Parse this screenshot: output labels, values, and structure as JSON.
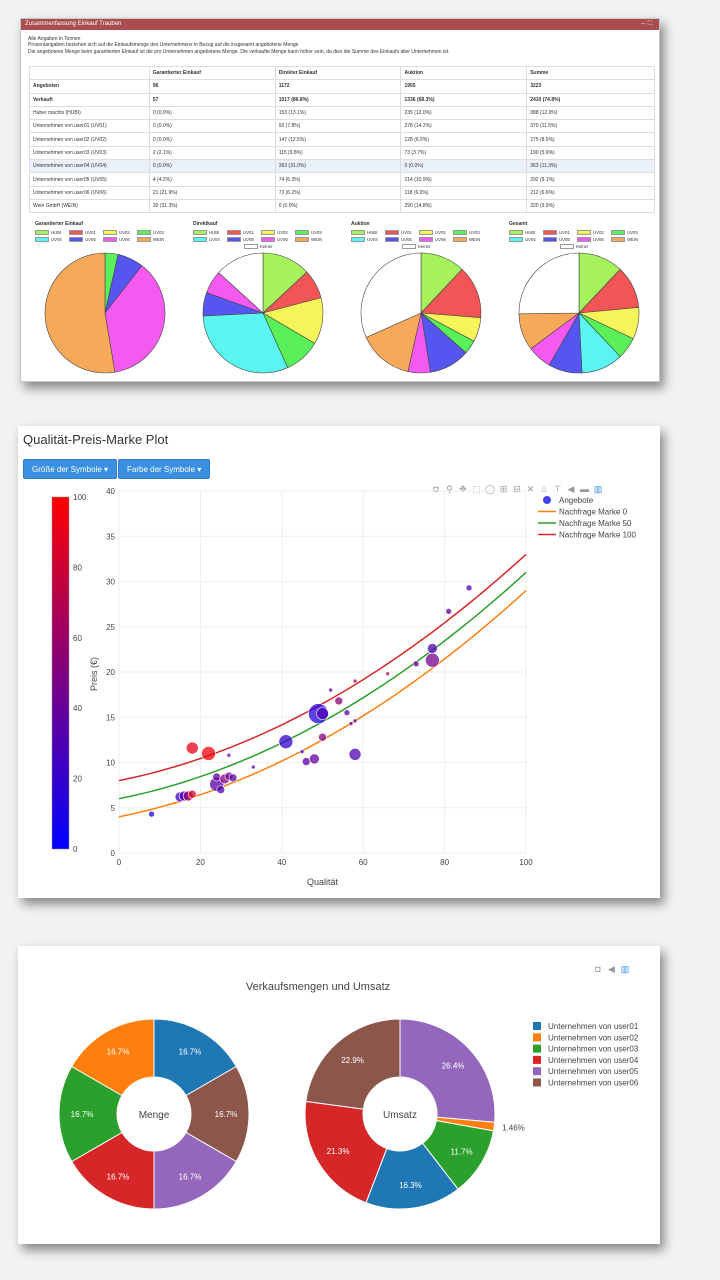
{
  "panel1": {
    "header_title": "Zusammenfassung Einkauf Trauben",
    "notes": [
      "Alle Angaben in Tonnen",
      "Prozentangaben beziehen sich auf die Einkaufsmenge des Unternehmens in Bezug auf die insgesamt angebotene Menge",
      "Die angebotene Menge beim garantierten Einkauf ist die pro Unternehmen angebotene Menge. Die verkaufte Menge kann höher sein, da dies die Summe des Einkaufs aller Unternehmen ist."
    ],
    "table": {
      "headers": [
        "",
        "Garantierter Einkauf",
        "Direkter Einkauf",
        "Auktion",
        "Summe"
      ],
      "rows": [
        [
          "Angeboten",
          "96",
          "1172",
          "1955",
          "3223"
        ],
        [
          "Verkauft",
          "57",
          "1017 (86.8%)",
          "1336 (68.3%)",
          "2410 (74.8%)"
        ],
        [
          "Huber machts (HUBI)",
          "0 (0.0%)",
          "153 (13.1%)",
          "235 (12.0%)",
          "388 (12.0%)"
        ],
        [
          "Unternehmen von user01 (UV01)",
          "0 (0.0%)",
          "92 (7.8%)",
          "278 (14.2%)",
          "370 (11.5%)"
        ],
        [
          "Unternehmen von user02 (UV02)",
          "0 (0.0%)",
          "147 (12.5%)",
          "128 (6.5%)",
          "275 (8.5%)"
        ],
        [
          "Unternehmen von user03 (UV03)",
          "2 (2.1%)",
          "115 (9.8%)",
          "73 (3.7%)",
          "190 (5.9%)"
        ],
        [
          "Unternehmen von user04 (UV04)",
          "0 (0.0%)",
          "363 (31.0%)",
          "0 (0.0%)",
          "363 (11.3%)"
        ],
        [
          "Unternehmen von user05 (UV05)",
          "4 (4.2%)",
          "74 (6.3%)",
          "214 (10.9%)",
          "292 (9.1%)"
        ],
        [
          "Unternehmen von user06 (UV06)",
          "21 (21.9%)",
          "73 (6.2%)",
          "118 (6.0%)",
          "212 (6.6%)"
        ],
        [
          "Wein GmbH (WEIN)",
          "30 (31.3%)",
          "0 (0.0%)",
          "290 (14.8%)",
          "320 (9.9%)"
        ]
      ]
    },
    "legend_labels": [
      "HUBI",
      "UV01",
      "UV02",
      "UV03",
      "UV04",
      "UV05",
      "UV06",
      "WEIN",
      "Keiner"
    ],
    "legend_colors": [
      "#a6f25a",
      "#f25555",
      "#f5f55a",
      "#5af05a",
      "#5af5f0",
      "#5555ef",
      "#f55af0",
      "#f7a95a",
      "#ffffff"
    ],
    "pies": [
      {
        "title": "Garantierter Einkauf",
        "values": [
          0,
          0,
          0,
          2,
          0,
          4,
          21,
          30
        ],
        "has_keiner": false
      },
      {
        "title": "Direktkauf",
        "values": [
          153,
          92,
          147,
          115,
          363,
          74,
          73,
          0,
          155
        ],
        "has_keiner": true
      },
      {
        "title": "Auktion",
        "values": [
          235,
          278,
          128,
          73,
          0,
          214,
          118,
          290,
          619
        ],
        "has_keiner": true
      },
      {
        "title": "Gesamt",
        "values": [
          388,
          370,
          275,
          190,
          363,
          292,
          212,
          320,
          813
        ],
        "has_keiner": true
      }
    ]
  },
  "panel2": {
    "title": "Qualität-Preis-Marke Plot",
    "btn_size": "Größe der Symbole ▾",
    "btn_color": "Farbe der Symbole ▾",
    "toolbar_icons": [
      "camera-icon",
      "zoom-icon",
      "pan-icon",
      "box-select-icon",
      "lasso-icon",
      "zoom-in-icon",
      "zoom-out-icon",
      "autoscale-icon",
      "home-icon",
      "spike-icon",
      "hover-closest-icon",
      "hover-compare-icon",
      "plotly-logo-icon"
    ],
    "chart_data": {
      "type": "scatter",
      "xlabel": "Qualität",
      "ylabel": "Preis (€)",
      "xlim": [
        0,
        100
      ],
      "ylim": [
        0,
        40
      ],
      "xticks": [
        0,
        20,
        40,
        60,
        80,
        100
      ],
      "yticks": [
        0,
        5,
        10,
        15,
        20,
        25,
        30,
        35,
        40
      ],
      "colorbar": {
        "min": 0,
        "max": 100,
        "ticks": [
          0,
          20,
          40,
          60,
          80,
          100
        ],
        "colors": [
          "#0000ff",
          "#ff0000"
        ]
      },
      "series": [
        {
          "name": "Angebote",
          "color": "#4444ee",
          "points": [
            {
              "x": 8,
              "y": 4.3,
              "c": 10,
              "s": 3
            },
            {
              "x": 15,
              "y": 6.2,
              "c": 20,
              "s": 5
            },
            {
              "x": 16,
              "y": 6.3,
              "c": 30,
              "s": 5
            },
            {
              "x": 17,
              "y": 6.3,
              "c": 60,
              "s": 5
            },
            {
              "x": 18,
              "y": 11.6,
              "c": 90,
              "s": 6
            },
            {
              "x": 18,
              "y": 6.5,
              "c": 85,
              "s": 4
            },
            {
              "x": 22,
              "y": 11.0,
              "c": 95,
              "s": 7
            },
            {
              "x": 24,
              "y": 7.6,
              "c": 35,
              "s": 7
            },
            {
              "x": 24,
              "y": 8.4,
              "c": 40,
              "s": 4
            },
            {
              "x": 25,
              "y": 7.0,
              "c": 30,
              "s": 4
            },
            {
              "x": 26,
              "y": 8.2,
              "c": 50,
              "s": 5
            },
            {
              "x": 27,
              "y": 8.5,
              "c": 45,
              "s": 4
            },
            {
              "x": 27,
              "y": 10.8,
              "c": 40,
              "s": 2
            },
            {
              "x": 28,
              "y": 8.3,
              "c": 35,
              "s": 4
            },
            {
              "x": 33,
              "y": 9.5,
              "c": 30,
              "s": 2
            },
            {
              "x": 41,
              "y": 12.3,
              "c": 20,
              "s": 7
            },
            {
              "x": 45,
              "y": 11.2,
              "c": 20,
              "s": 2
            },
            {
              "x": 46,
              "y": 10.1,
              "c": 35,
              "s": 4
            },
            {
              "x": 48,
              "y": 10.4,
              "c": 40,
              "s": 5
            },
            {
              "x": 49,
              "y": 15.4,
              "c": 15,
              "s": 10
            },
            {
              "x": 50,
              "y": 15.4,
              "c": 30,
              "s": 6
            },
            {
              "x": 50,
              "y": 12.8,
              "c": 50,
              "s": 4
            },
            {
              "x": 52,
              "y": 18.0,
              "c": 40,
              "s": 2
            },
            {
              "x": 54,
              "y": 16.8,
              "c": 55,
              "s": 4
            },
            {
              "x": 56,
              "y": 15.5,
              "c": 35,
              "s": 3
            },
            {
              "x": 57,
              "y": 14.3,
              "c": 40,
              "s": 2
            },
            {
              "x": 58,
              "y": 14.6,
              "c": 40,
              "s": 2
            },
            {
              "x": 58,
              "y": 10.9,
              "c": 30,
              "s": 6
            },
            {
              "x": 58,
              "y": 19.0,
              "c": 60,
              "s": 2
            },
            {
              "x": 66,
              "y": 19.8,
              "c": 70,
              "s": 2
            },
            {
              "x": 73,
              "y": 20.9,
              "c": 40,
              "s": 3
            },
            {
              "x": 77,
              "y": 21.3,
              "c": 45,
              "s": 7
            },
            {
              "x": 77,
              "y": 22.6,
              "c": 30,
              "s": 5
            },
            {
              "x": 81,
              "y": 26.7,
              "c": 40,
              "s": 3
            },
            {
              "x": 86,
              "y": 29.3,
              "c": 30,
              "s": 3
            }
          ]
        },
        {
          "name": "Nachfrage Marke 0",
          "color": "#ff7f0e",
          "a": 4,
          "b": 0.09,
          "c": 0.0016
        },
        {
          "name": "Nachfrage Marke 50",
          "color": "#2ca02c",
          "a": 6,
          "b": 0.09,
          "c": 0.0016
        },
        {
          "name": "Nachfrage Marke 100",
          "color": "#d62728",
          "a": 8,
          "b": 0.09,
          "c": 0.0016
        }
      ]
    }
  },
  "panel3": {
    "toolbar_icons": [
      "camera-icon",
      "edit-icon",
      "plotly-logo-icon"
    ],
    "chart_data": {
      "type": "pie",
      "title": "Verkaufsmengen und Umsatz",
      "labels": [
        "Unternehmen von user01",
        "Unternehmen von user02",
        "Unternehmen von user03",
        "Unternehmen von user04",
        "Unternehmen von user05",
        "Unternehmen von user06"
      ],
      "colors": [
        "#1f77b4",
        "#ff7f0e",
        "#2ca02c",
        "#d62728",
        "#9467bd",
        "#8c564b"
      ],
      "charts": [
        {
          "name": "Menge",
          "values": [
            16.7,
            16.7,
            16.7,
            16.7,
            16.7,
            16.7
          ],
          "order": [
            0,
            5,
            4,
            3,
            2,
            1
          ]
        },
        {
          "name": "Umsatz",
          "values": [
            16.3,
            1.46,
            11.7,
            21.3,
            26.4,
            22.9
          ],
          "order": [
            4,
            1,
            2,
            0,
            3,
            5
          ]
        }
      ],
      "labels_display": {
        "Menge": [
          "16.7%",
          "16.7%",
          "16.7%",
          "16.7%",
          "16.7%",
          "16.7%"
        ],
        "Umsatz": [
          "16.3%",
          "1.46%",
          "11.7%",
          "21.3%",
          "26.4%",
          "22.9%"
        ]
      }
    }
  }
}
